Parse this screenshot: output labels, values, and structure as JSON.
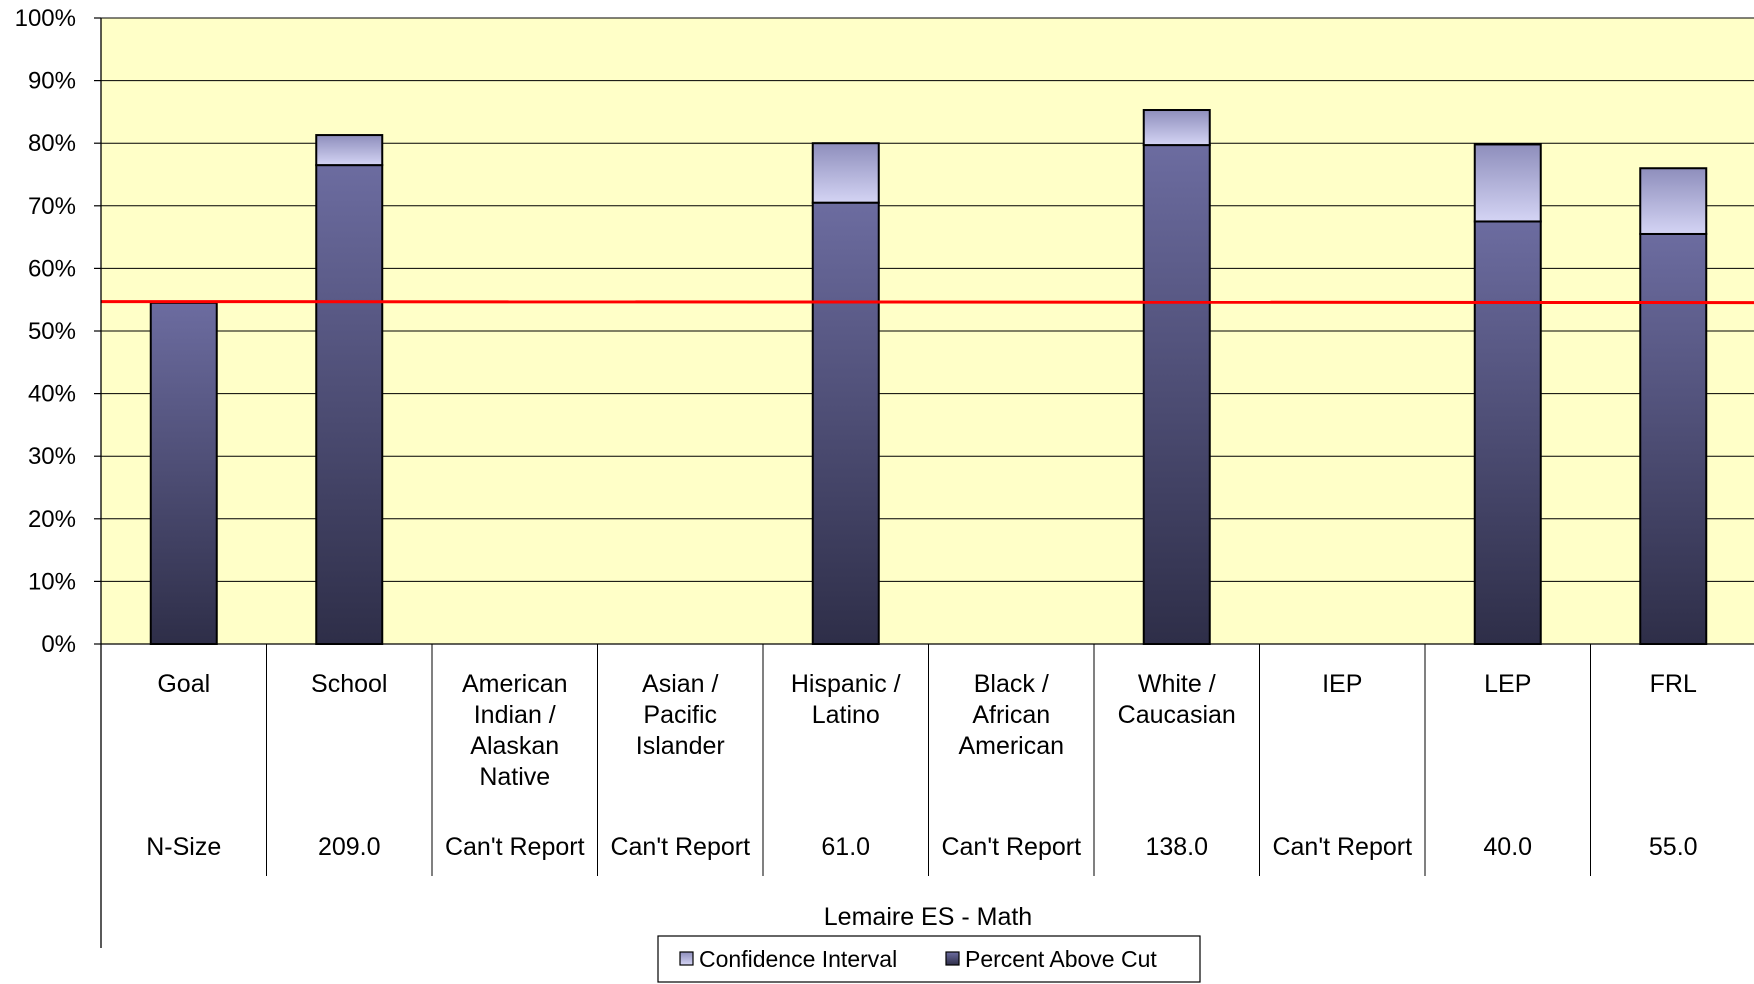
{
  "chart_data": {
    "type": "bar",
    "stacked": true,
    "ylim": [
      0,
      100
    ],
    "yticks": [
      "0%",
      "10%",
      "20%",
      "30%",
      "40%",
      "50%",
      "60%",
      "70%",
      "80%",
      "90%",
      "100%"
    ],
    "categories": [
      [
        "Goal"
      ],
      [
        "School"
      ],
      [
        "American",
        "Indian /",
        "Alaskan",
        "Native"
      ],
      [
        "Asian /",
        "Pacific",
        "Islander"
      ],
      [
        "Hispanic /",
        "Latino"
      ],
      [
        "Black /",
        "African",
        "American"
      ],
      [
        "White /",
        "Caucasian"
      ],
      [
        "IEP"
      ],
      [
        "LEP"
      ],
      [
        "FRL"
      ]
    ],
    "n_size": [
      "N-Size",
      "209.0",
      "Can't Report",
      "Can't Report",
      "61.0",
      "Can't Report",
      "138.0",
      "Can't Report",
      "40.0",
      "55.0"
    ],
    "series": [
      {
        "name": "Percent Above Cut",
        "values": [
          54.5,
          76.5,
          null,
          null,
          70.5,
          null,
          79.7,
          null,
          67.5,
          65.5
        ]
      },
      {
        "name": "Confidence Interval",
        "values": [
          0,
          4.8,
          null,
          null,
          9.5,
          null,
          5.6,
          null,
          12.3,
          10.5
        ]
      }
    ],
    "goal_line": 54.7,
    "xlabel": "Lemaire ES - Math",
    "legend_position": "bottom",
    "grid": true,
    "colors": {
      "plot_background": "#ffffc8",
      "gridline": "#000000",
      "goal_line": "#ff0000",
      "bar_top": "#6c6ca0",
      "bar_bottom": "#2e2e48",
      "ci_top": "#8e8ebc",
      "ci_bottom": "#d4d4f4"
    }
  }
}
